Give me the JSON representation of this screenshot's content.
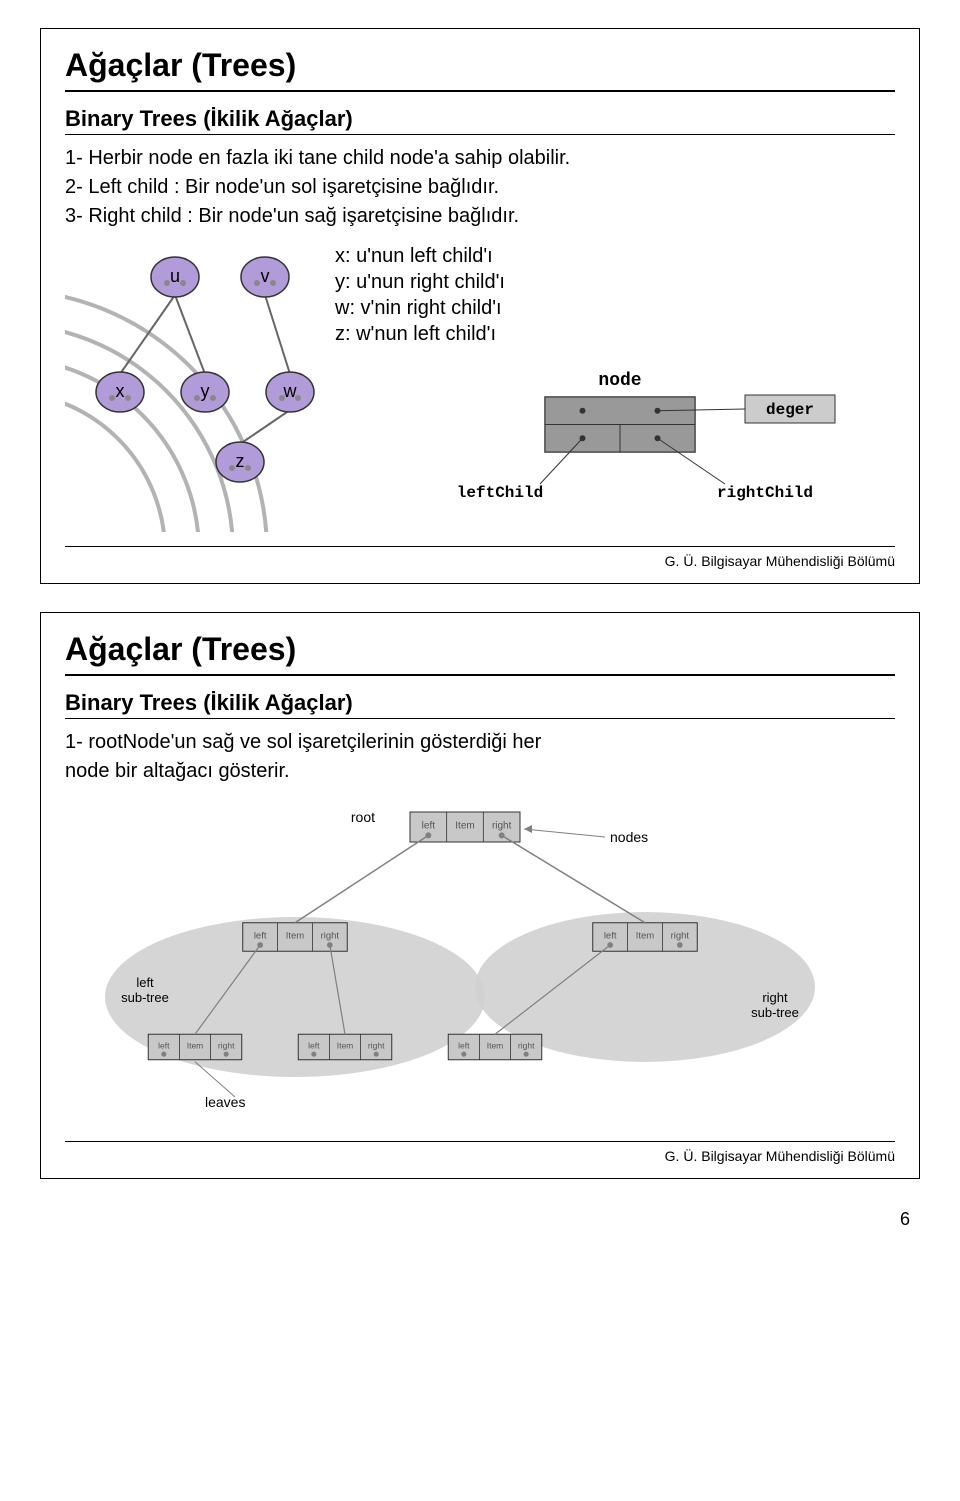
{
  "page_number": "6",
  "footer_text": "G. Ü. Bilgisayar Mühendisliği Bölümü",
  "slide1": {
    "title": "Ağaçlar (Trees)",
    "subtitle": "Binary Trees (İkilik Ağaçlar)",
    "lines": [
      "1- Herbir node en fazla iki tane child node'a sahip olabilir.",
      "2- Left child : Bir node'un sol işaretçisine bağlıdır.",
      "3- Right child : Bir node'un sağ işaretçisine bağlıdır."
    ],
    "explain": [
      "x: u'nun left child'ı",
      "y: u'nun right child'ı",
      "w: v'nin right child'ı",
      "z: w'nun left child'ı"
    ],
    "tree": {
      "arc_color": "#808080",
      "node_fill": "#b19cd9",
      "node_stroke": "#333333",
      "edge_color": "#666666",
      "dot_color": "#888888",
      "labels": {
        "u": "u",
        "v": "v",
        "x": "x",
        "y": "y",
        "w": "w",
        "z": "z"
      },
      "diagram_labels": {
        "node": "node",
        "deger": "deger",
        "leftChild": "leftChild",
        "rightChild": "rightChild"
      },
      "box_fill": "#999999",
      "box_stroke": "#333333",
      "label_box_fill": "#cccccc"
    }
  },
  "slide2": {
    "title": "Ağaçlar (Trees)",
    "subtitle": "Binary Trees (İkilik Ağaçlar)",
    "lines": [
      "1- rootNode'un sağ ve sol işaretçilerinin gösterdiği her",
      "    node bir altağacı gösterir."
    ],
    "diagram": {
      "blob_fill": "#d0d0d0",
      "node_fill": "#c8c8c8",
      "node_stroke": "#333333",
      "dot_color": "#808080",
      "line_color": "#808080",
      "text_color": "#555555",
      "labels": {
        "root": "root",
        "nodes": "nodes",
        "left": "left",
        "Item": "Item",
        "right": "right",
        "left_subtree": "left\nsub-tree",
        "right_subtree": "right\nsub-tree",
        "leaves": "leaves"
      }
    }
  }
}
